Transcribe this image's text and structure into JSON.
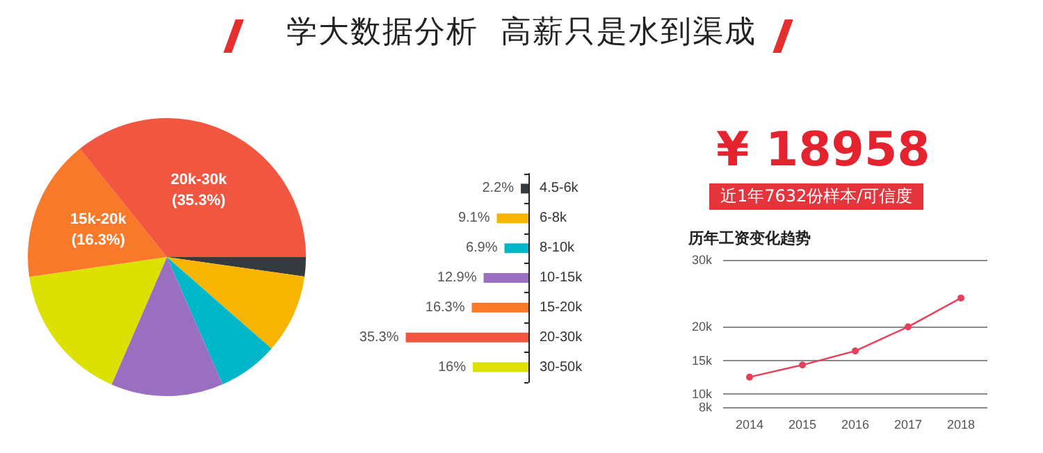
{
  "chart_data": [
    {
      "type": "pie",
      "title": "学大数据分析  高薪只是水到渠成",
      "categories": [
        null,
        null,
        null,
        null,
        null,
        "15k-20k",
        "20k-30k"
      ],
      "values": [
        2.2,
        9.1,
        6.9,
        12.9,
        16,
        16.3,
        35.3
      ],
      "colors": [
        "#333a40",
        "#f7b400",
        "#00b7c9",
        "#9a6fc1",
        "#dde100",
        "#f9792b",
        "#f15641"
      ],
      "value_labels": [
        null,
        null,
        null,
        null,
        null,
        "(16.3%)",
        "(35.3%)"
      ],
      "legend": false
    },
    {
      "type": "bar",
      "orientation": "horizontal",
      "categories": [
        "4.5-6k",
        "6-8k",
        "8-10k",
        "10-15k",
        "15-20k",
        "20-30k",
        "30-50k"
      ],
      "values": [
        2.2,
        9.1,
        6.9,
        12.9,
        16.3,
        35.3,
        16
      ],
      "colors": [
        "#333a40",
        "#f7b400",
        "#00b7c9",
        "#9a6fc1",
        "#f9792b",
        "#f15641",
        "#dde100"
      ],
      "value_labels": [
        "2.2%",
        "9.1%",
        "6.9%",
        "12.9%",
        "16.3%",
        "35.3%",
        "16%"
      ],
      "legend": false
    },
    {
      "type": "line",
      "title": "历年工资变化趋势",
      "annotations": [
        "¥ 18958",
        "近1年7632份样本/可信度"
      ],
      "categories": [
        "2014",
        "2015",
        "2016",
        "2017",
        "2018"
      ],
      "series": [
        {
          "color": "#e8405a",
          "values": [
            12.5,
            14.3,
            16.4,
            20,
            24.3
          ]
        }
      ],
      "ylim": [
        8,
        30
      ],
      "yticks": [
        {
          "value": 8,
          "label": "8k"
        },
        {
          "value": 10,
          "label": "10k"
        },
        {
          "value": 15,
          "label": "15k"
        },
        {
          "value": 20,
          "label": "20k"
        },
        {
          "value": 30,
          "label": "30k"
        }
      ],
      "grid": "y",
      "marker": "circle",
      "line_style": "solid",
      "legend": false
    }
  ]
}
